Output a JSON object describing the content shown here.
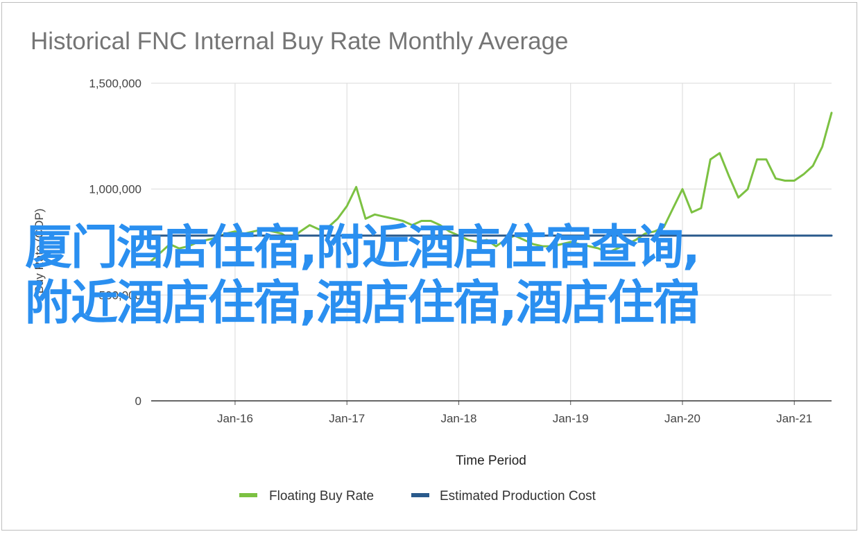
{
  "chart_data": {
    "type": "line",
    "title": "Historical FNC Internal Buy Rate Monthly Average",
    "xlabel": "Time Period",
    "ylabel": "Buy Rate (COP)",
    "ylim": [
      0,
      1500000
    ],
    "yticks": [
      {
        "value": 0,
        "label": "0"
      },
      {
        "value": 500000,
        "label": "500,000"
      },
      {
        "value": 1000000,
        "label": "1,000,000"
      },
      {
        "value": 1500000,
        "label": "1,500,000"
      }
    ],
    "xlim": [
      "2015-04",
      "2021-05"
    ],
    "xticks": [
      {
        "date": "2016-01",
        "label": "Jan-16"
      },
      {
        "date": "2017-01",
        "label": "Jan-17"
      },
      {
        "date": "2018-01",
        "label": "Jan-18"
      },
      {
        "date": "2019-01",
        "label": "Jan-19"
      },
      {
        "date": "2020-01",
        "label": "Jan-20"
      },
      {
        "date": "2021-01",
        "label": "Jan-21"
      }
    ],
    "grid": true,
    "legend_position": "bottom",
    "series": [
      {
        "name": "Floating Buy Rate",
        "color": "#7cc142",
        "points": [
          [
            "2015-04",
            660000
          ],
          [
            "2015-05",
            700000
          ],
          [
            "2015-06",
            740000
          ],
          [
            "2015-07",
            720000
          ],
          [
            "2015-08",
            730000
          ],
          [
            "2015-09",
            750000
          ],
          [
            "2015-10",
            760000
          ],
          [
            "2015-11",
            770000
          ],
          [
            "2015-12",
            790000
          ],
          [
            "2016-01",
            800000
          ],
          [
            "2016-02",
            790000
          ],
          [
            "2016-03",
            800000
          ],
          [
            "2016-04",
            810000
          ],
          [
            "2016-05",
            800000
          ],
          [
            "2016-06",
            790000
          ],
          [
            "2016-07",
            760000
          ],
          [
            "2016-08",
            800000
          ],
          [
            "2016-09",
            830000
          ],
          [
            "2016-10",
            810000
          ],
          [
            "2016-11",
            820000
          ],
          [
            "2016-12",
            860000
          ],
          [
            "2017-01",
            920000
          ],
          [
            "2017-02",
            1010000
          ],
          [
            "2017-03",
            860000
          ],
          [
            "2017-04",
            880000
          ],
          [
            "2017-05",
            870000
          ],
          [
            "2017-06",
            860000
          ],
          [
            "2017-07",
            850000
          ],
          [
            "2017-08",
            830000
          ],
          [
            "2017-09",
            850000
          ],
          [
            "2017-10",
            850000
          ],
          [
            "2017-11",
            830000
          ],
          [
            "2017-12",
            800000
          ],
          [
            "2018-01",
            780000
          ],
          [
            "2018-02",
            760000
          ],
          [
            "2018-03",
            750000
          ],
          [
            "2018-04",
            760000
          ],
          [
            "2018-05",
            730000
          ],
          [
            "2018-06",
            760000
          ],
          [
            "2018-07",
            780000
          ],
          [
            "2018-08",
            760000
          ],
          [
            "2018-09",
            740000
          ],
          [
            "2018-10",
            730000
          ],
          [
            "2018-11",
            730000
          ],
          [
            "2018-12",
            740000
          ],
          [
            "2019-01",
            750000
          ],
          [
            "2019-02",
            740000
          ],
          [
            "2019-03",
            730000
          ],
          [
            "2019-04",
            720000
          ],
          [
            "2019-05",
            700000
          ],
          [
            "2019-06",
            720000
          ],
          [
            "2019-07",
            740000
          ],
          [
            "2019-08",
            760000
          ],
          [
            "2019-09",
            790000
          ],
          [
            "2019-10",
            800000
          ],
          [
            "2019-11",
            820000
          ],
          [
            "2019-12",
            910000
          ],
          [
            "2020-01",
            1000000
          ],
          [
            "2020-02",
            890000
          ],
          [
            "2020-03",
            910000
          ],
          [
            "2020-04",
            1140000
          ],
          [
            "2020-05",
            1170000
          ],
          [
            "2020-06",
            1060000
          ],
          [
            "2020-07",
            960000
          ],
          [
            "2020-08",
            1000000
          ],
          [
            "2020-09",
            1140000
          ],
          [
            "2020-10",
            1140000
          ],
          [
            "2020-11",
            1050000
          ],
          [
            "2020-12",
            1040000
          ],
          [
            "2021-01",
            1040000
          ],
          [
            "2021-02",
            1070000
          ],
          [
            "2021-03",
            1110000
          ],
          [
            "2021-04",
            1200000
          ],
          [
            "2021-05",
            1360000
          ]
        ]
      },
      {
        "name": "Estimated Production Cost",
        "color": "#2a5a8c",
        "points": [
          [
            "2015-04",
            780000
          ],
          [
            "2021-05",
            780000
          ]
        ]
      }
    ]
  },
  "overlay_text": {
    "line1": "厦门酒店住宿,附近酒店住宿查询,",
    "line2": "附近酒店住宿,酒店住宿,酒店住宿"
  }
}
